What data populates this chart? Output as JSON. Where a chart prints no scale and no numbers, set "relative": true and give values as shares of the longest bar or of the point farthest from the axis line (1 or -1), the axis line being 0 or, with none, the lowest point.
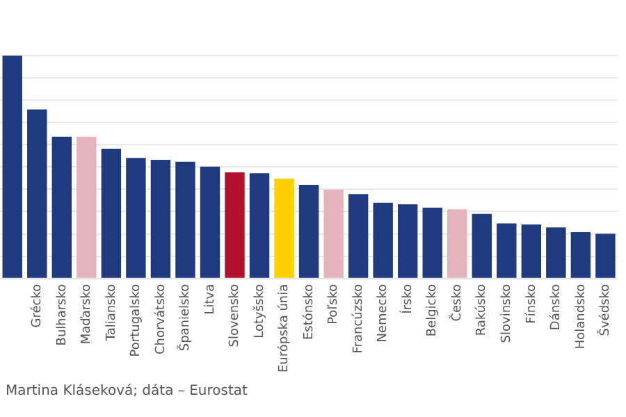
{
  "chart_data": {
    "type": "bar",
    "relative": true,
    "grid": "y",
    "legend": false,
    "categories": [
      null,
      "Grécko",
      "Bulharsko",
      "Maďarsko",
      "Taliansko",
      "Portugalsko",
      "Chorvátsko",
      "Španielsko",
      "Litva",
      "Slovensko",
      "Lotyšsko",
      "Európska únia",
      "Estónsko",
      "Poľsko",
      "Francúzsko",
      "Nemecko",
      "Írsko",
      "Belgicko",
      "Česko",
      "Rakúsko",
      "Slovinsko",
      "Fínsko",
      "Dánsko",
      "Holandsko",
      "Švédsko"
    ],
    "values": [
      1,
      0.758,
      0.636,
      0.636,
      0.582,
      0.541,
      0.532,
      0.524,
      0.502,
      0.476,
      0.472,
      0.448,
      0.42,
      0.398,
      0.379,
      0.34,
      0.333,
      0.318,
      0.31,
      0.29,
      0.247,
      0.242,
      0.229,
      0.208,
      0.201
    ],
    "colors": [
      "#1f3a7f",
      "#1f3a7f",
      "#1f3a7f",
      "#e5b3bb",
      "#1f3a7f",
      "#1f3a7f",
      "#1f3a7f",
      "#1f3a7f",
      "#1f3a7f",
      "#b3102b",
      "#1f3a7f",
      "#fdd000",
      "#1f3a7f",
      "#e5b3bb",
      "#1f3a7f",
      "#1f3a7f",
      "#1f3a7f",
      "#1f3a7f",
      "#e5b3bb",
      "#1f3a7f",
      "#1f3a7f",
      "#1f3a7f",
      "#1f3a7f",
      "#1f3a7f",
      "#1f3a7f"
    ],
    "annotations": [
      "Martina Kláseková; dáta – Eurostat"
    ]
  }
}
